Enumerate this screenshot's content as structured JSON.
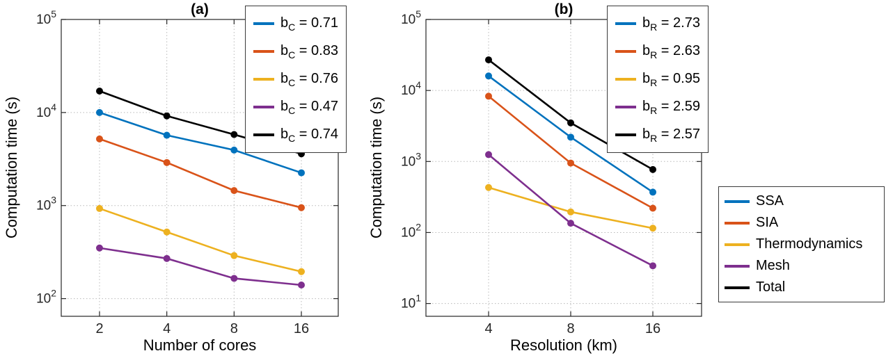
{
  "figure": {
    "background": "#ffffff",
    "axis_color": "#262626",
    "grid_style": "dotted"
  },
  "chart_data": [
    {
      "id": "a",
      "type": "line",
      "title": "(a)",
      "xlabel": "Number of cores",
      "ylabel": "Computation time (s)",
      "x": [
        2,
        4,
        8,
        16
      ],
      "xscale": "log2",
      "yscale": "log10",
      "ylim": [
        100,
        100000
      ],
      "yticks": {
        "base": "10",
        "powers": [
          2,
          3,
          4,
          5
        ]
      },
      "grid": true,
      "legend_position": "top-right",
      "series": [
        {
          "name": "SSA",
          "color": "#0072BD",
          "values": [
            10000,
            5700,
            3950,
            2250
          ],
          "slope": {
            "symbol": "b",
            "subscript": "C",
            "text": " = 0.71"
          }
        },
        {
          "name": "SIA",
          "color": "#D95319",
          "values": [
            5200,
            2900,
            1450,
            950
          ],
          "slope": {
            "symbol": "b",
            "subscript": "C",
            "text": " = 0.83"
          }
        },
        {
          "name": "Thermodynamics",
          "color": "#EDB120",
          "values": [
            930,
            520,
            290,
            195
          ],
          "slope": {
            "symbol": "b",
            "subscript": "C",
            "text": " = 0.76"
          }
        },
        {
          "name": "Mesh",
          "color": "#7E2F8E",
          "values": [
            350,
            270,
            165,
            140
          ],
          "slope": {
            "symbol": "b",
            "subscript": "C",
            "text": " = 0.47"
          }
        },
        {
          "name": "Total",
          "color": "#000000",
          "values": [
            17000,
            9200,
            5800,
            3600
          ],
          "slope": {
            "symbol": "b",
            "subscript": "C",
            "text": " = 0.74"
          }
        }
      ]
    },
    {
      "id": "b",
      "type": "line",
      "title": "(b)",
      "xlabel": "Resolution (km)",
      "ylabel": "Computation time (s)",
      "x": [
        4,
        8,
        16
      ],
      "xscale": "log2",
      "yscale": "log10",
      "ylim": [
        10,
        100000
      ],
      "yticks": {
        "base": "10",
        "powers": [
          1,
          2,
          3,
          4,
          5
        ]
      },
      "grid": true,
      "legend_position": "top-right",
      "series": [
        {
          "name": "SSA",
          "color": "#0072BD",
          "values": [
            16000,
            2200,
            370
          ],
          "slope": {
            "symbol": "b",
            "subscript": "R",
            "text": " = 2.73"
          }
        },
        {
          "name": "SIA",
          "color": "#D95319",
          "values": [
            8300,
            950,
            220
          ],
          "slope": {
            "symbol": "b",
            "subscript": "R",
            "text": " = 2.63"
          }
        },
        {
          "name": "Thermodynamics",
          "color": "#EDB120",
          "values": [
            430,
            195,
            115
          ],
          "slope": {
            "symbol": "b",
            "subscript": "R",
            "text": " = 0.95"
          }
        },
        {
          "name": "Mesh",
          "color": "#7E2F8E",
          "values": [
            1250,
            135,
            34
          ],
          "slope": {
            "symbol": "b",
            "subscript": "R",
            "text": " = 2.59"
          }
        },
        {
          "name": "Total",
          "color": "#000000",
          "values": [
            27000,
            3500,
            770
          ],
          "slope": {
            "symbol": "b",
            "subscript": "R",
            "text": " = 2.57"
          }
        }
      ]
    }
  ],
  "series_legend": {
    "items": [
      {
        "label": "SSA",
        "color": "#0072BD"
      },
      {
        "label": "SIA",
        "color": "#D95319"
      },
      {
        "label": "Thermodynamics",
        "color": "#EDB120"
      },
      {
        "label": "Mesh",
        "color": "#7E2F8E"
      },
      {
        "label": "Total",
        "color": "#000000"
      }
    ]
  }
}
